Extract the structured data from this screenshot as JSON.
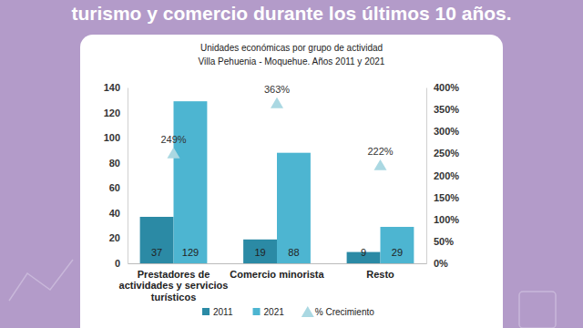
{
  "heading": "turismo y comercio durante los últimos 10 años.",
  "chart_data": {
    "type": "bar",
    "title": "Unidades económicas por grupo de actividad",
    "subtitle": "Villa Pehuenia - Moquehue. Años 2011 y 2021",
    "categories": [
      "Prestadores de actividades y servicios turísticos",
      "Comercio minorista",
      "Resto"
    ],
    "series": [
      {
        "name": "2011",
        "type": "bar",
        "color": "#2b8aa5",
        "values": [
          37,
          19,
          9
        ]
      },
      {
        "name": "2021",
        "type": "bar",
        "color": "#4db5d1",
        "values": [
          129,
          88,
          29
        ]
      },
      {
        "name": "% Crecimiento",
        "type": "scatter",
        "marker": "triangle",
        "color": "#aad8e2",
        "axis": "y2",
        "values": [
          249,
          363,
          222
        ],
        "value_labels": [
          "249%",
          "363%",
          "222%"
        ]
      }
    ],
    "ylim": [
      0,
      140
    ],
    "yticks": [
      0,
      20,
      40,
      60,
      80,
      100,
      120,
      140
    ],
    "y2lim": [
      0,
      400
    ],
    "y2ticks": [
      {
        "value": 0,
        "label": "0%"
      },
      {
        "value": 50,
        "label": "50%"
      },
      {
        "value": 100,
        "label": "100%"
      },
      {
        "value": 150,
        "label": "150%"
      },
      {
        "value": 200,
        "label": "200%"
      },
      {
        "value": 250,
        "label": "250%"
      },
      {
        "value": 300,
        "label": "300%"
      },
      {
        "value": 350,
        "label": "350%"
      },
      {
        "value": 400,
        "label": "400%"
      }
    ],
    "grid": false,
    "legend": "bottom",
    "data_labels": true
  }
}
